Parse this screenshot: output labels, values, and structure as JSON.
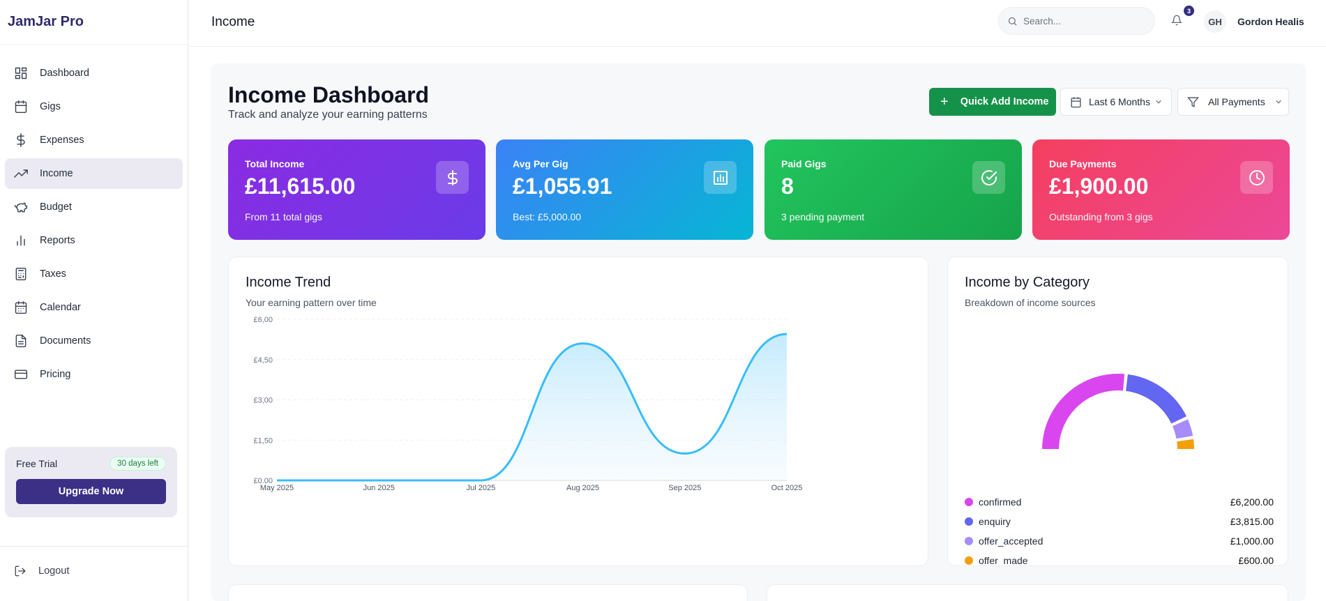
{
  "app": {
    "name": "JamJar Pro"
  },
  "sidebar": {
    "items": [
      {
        "label": "Dashboard",
        "icon": "grid-icon",
        "active": false
      },
      {
        "label": "Gigs",
        "icon": "calendar-icon",
        "active": false
      },
      {
        "label": "Expenses",
        "icon": "dollar-icon",
        "active": false
      },
      {
        "label": "Income",
        "icon": "trending-up-icon",
        "active": true
      },
      {
        "label": "Budget",
        "icon": "piggy-bank-icon",
        "active": false
      },
      {
        "label": "Reports",
        "icon": "bar-chart-icon",
        "active": false
      },
      {
        "label": "Taxes",
        "icon": "calculator-icon",
        "active": false
      },
      {
        "label": "Calendar",
        "icon": "calendar-days-icon",
        "active": false
      },
      {
        "label": "Documents",
        "icon": "file-icon",
        "active": false
      },
      {
        "label": "Pricing",
        "icon": "credit-card-icon",
        "active": false
      }
    ],
    "trial": {
      "label": "Free Trial",
      "badge": "30 days left",
      "button": "Upgrade Now"
    },
    "logout": "Logout"
  },
  "header": {
    "title": "Income",
    "search_placeholder": "Search...",
    "notifications": "3",
    "user_initials": "GH",
    "user_name": "Gordon Healis"
  },
  "page": {
    "title": "Income Dashboard",
    "subtitle": "Track and analyze your earning patterns",
    "quick_add": "Quick Add Income",
    "period": "Last 6 Months",
    "payments_filter": "All Payments"
  },
  "colors": {
    "accent": "#3b2f86",
    "success": "#15924a",
    "line": "#38bdf8",
    "confirmed": "#d946ef",
    "enquiry": "#6366f1",
    "offer_accepted": "#a78bfa",
    "offer_made": "#f59e0b"
  },
  "stats": [
    {
      "label": "Total Income",
      "value": "£11,615.00",
      "sub": "From 11 total gigs",
      "icon": "dollar-icon"
    },
    {
      "label": "Avg Per Gig",
      "value": "£1,055.91",
      "sub": "Best: £5,000.00",
      "icon": "bar-chart-icon"
    },
    {
      "label": "Paid Gigs",
      "value": "8",
      "sub": "3 pending payment",
      "icon": "check-circle-icon"
    },
    {
      "label": "Due Payments",
      "value": "£1,900.00",
      "sub": "Outstanding from 3 gigs",
      "icon": "clock-icon"
    }
  ],
  "trend_panel": {
    "title": "Income Trend",
    "subtitle": "Your earning pattern over time"
  },
  "category_panel": {
    "title": "Income by Category",
    "subtitle": "Breakdown of income sources"
  },
  "chart_data": [
    {
      "type": "area",
      "title": "Income Trend",
      "x": [
        "May 2025",
        "Jun 2025",
        "Jul 2025",
        "Aug 2025",
        "Sep 2025",
        "Oct 2025"
      ],
      "series": [
        {
          "values": [
            0,
            0,
            0,
            5100,
            1000,
            5450
          ]
        }
      ],
      "ylim": [
        0,
        6000
      ],
      "yticks": [
        "£0.00",
        "£1,50",
        "£3,00",
        "£4,50",
        "£6,00"
      ],
      "grid": true
    },
    {
      "type": "pie",
      "title": "Income by Category",
      "categories": [
        "confirmed",
        "enquiry",
        "offer_accepted",
        "offer_made"
      ],
      "values": [
        6200,
        3815,
        1000,
        600
      ],
      "labels": [
        "£6,200.00",
        "£3,815.00",
        "£1,000.00",
        "£600.00"
      ]
    }
  ]
}
